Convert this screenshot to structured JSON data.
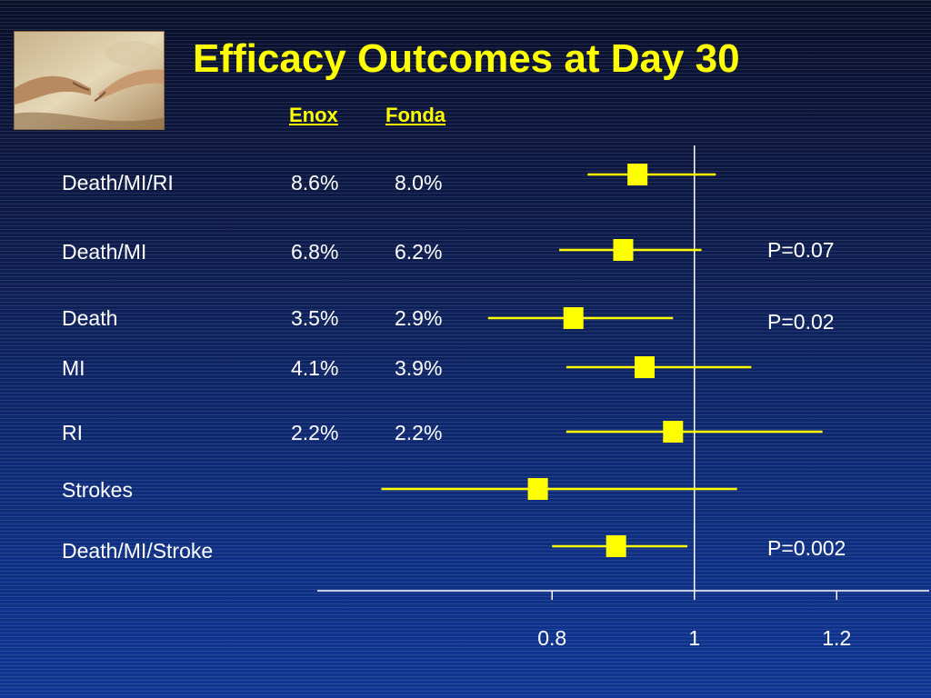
{
  "slide": {
    "title": "Efficacy Outcomes at Day 30",
    "column_headers": {
      "enox": "Enox",
      "fonda": "Fonda"
    },
    "logo_icon": "creation-of-adam-hands-image",
    "colors": {
      "title": "#ffff00",
      "marker": "#ffff00",
      "text": "#ffffff",
      "axis": "#ffffff",
      "background_top": "#0a0f2a",
      "background_bottom": "#0f3694"
    }
  },
  "rows": [
    {
      "label": "Death/MI/RI",
      "enox": "8.6%",
      "fonda": "8.0%",
      "p": ""
    },
    {
      "label": "Death/MI",
      "enox": "6.8%",
      "fonda": "6.2%",
      "p": "P=0.07"
    },
    {
      "label": "Death",
      "enox": "3.5%",
      "fonda": "2.9%",
      "p": "P=0.02"
    },
    {
      "label": "MI",
      "enox": "4.1%",
      "fonda": "3.9%",
      "p": ""
    },
    {
      "label": "RI",
      "enox": "2.2%",
      "fonda": "2.2%",
      "p": ""
    },
    {
      "label": "Strokes",
      "enox": "",
      "fonda": "",
      "p": ""
    },
    {
      "label": "Death/MI/Stroke",
      "enox": "",
      "fonda": "",
      "p": "P=0.002"
    }
  ],
  "chart_data": {
    "type": "forest",
    "categories": [
      "Death/MI/RI",
      "Death/MI",
      "Death",
      "MI",
      "RI",
      "Strokes",
      "Death/MI/Stroke"
    ],
    "estimate": [
      0.92,
      0.9,
      0.83,
      0.93,
      0.97,
      0.78,
      0.89
    ],
    "ci_low": [
      0.85,
      0.81,
      0.71,
      0.82,
      0.82,
      0.56,
      0.8
    ],
    "ci_high": [
      1.03,
      1.01,
      0.97,
      1.08,
      1.18,
      1.06,
      0.99
    ],
    "x_ticks": [
      "0.8",
      "1",
      "1.2"
    ],
    "x_tick_values": [
      0.8,
      1.0,
      1.2
    ],
    "reference_line": 1.0,
    "xlim": [
      0.47,
      1.33
    ],
    "p_values": [
      "",
      "P=0.07",
      "P=0.02",
      "",
      "",
      "",
      "P=0.002"
    ],
    "title": "Efficacy Outcomes at Day 30",
    "xlabel": "",
    "ylabel": ""
  }
}
